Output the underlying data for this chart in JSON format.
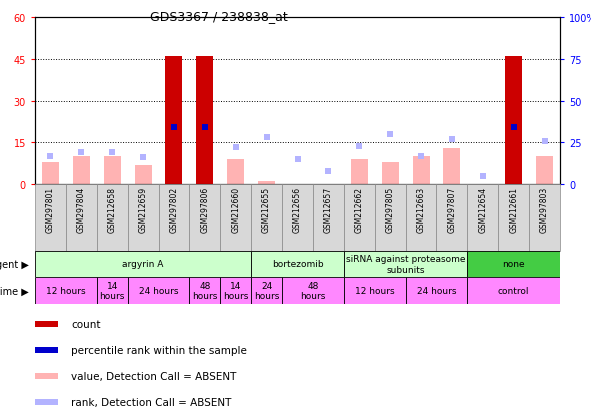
{
  "title": "GDS3367 / 238838_at",
  "samples": [
    "GSM297801",
    "GSM297804",
    "GSM212658",
    "GSM212659",
    "GSM297802",
    "GSM297806",
    "GSM212660",
    "GSM212655",
    "GSM212656",
    "GSM212657",
    "GSM212662",
    "GSM297805",
    "GSM212663",
    "GSM297807",
    "GSM212654",
    "GSM212661",
    "GSM297803"
  ],
  "count_values": [
    0,
    0,
    0,
    0,
    46,
    46,
    0,
    0,
    0,
    0,
    0,
    0,
    0,
    0,
    0,
    46,
    0
  ],
  "value_absent": [
    8,
    10,
    10,
    7,
    0,
    0,
    9,
    1,
    0,
    0,
    9,
    8,
    10,
    13,
    0,
    0,
    10
  ],
  "rank_absent": [
    17,
    19,
    19,
    16,
    0,
    0,
    22,
    28,
    15,
    8,
    23,
    30,
    17,
    27,
    5,
    0,
    26
  ],
  "percentile_present": [
    0,
    0,
    0,
    0,
    34,
    34,
    0,
    0,
    0,
    0,
    0,
    0,
    0,
    0,
    0,
    34,
    0
  ],
  "agent_groups": [
    {
      "label": "argyrin A",
      "start": 0,
      "end": 7,
      "color": "#ccffcc"
    },
    {
      "label": "bortezomib",
      "start": 7,
      "end": 10,
      "color": "#ccffcc"
    },
    {
      "label": "siRNA against proteasome\nsubunits",
      "start": 10,
      "end": 14,
      "color": "#ccffcc"
    },
    {
      "label": "none",
      "start": 14,
      "end": 17,
      "color": "#44cc44"
    }
  ],
  "time_groups": [
    {
      "label": "12 hours",
      "start": 0,
      "end": 2
    },
    {
      "label": "14\nhours",
      "start": 2,
      "end": 3
    },
    {
      "label": "24 hours",
      "start": 3,
      "end": 5
    },
    {
      "label": "48\nhours",
      "start": 5,
      "end": 6
    },
    {
      "label": "14\nhours",
      "start": 6,
      "end": 7
    },
    {
      "label": "24\nhours",
      "start": 7,
      "end": 8
    },
    {
      "label": "48\nhours",
      "start": 8,
      "end": 10
    },
    {
      "label": "12 hours",
      "start": 10,
      "end": 12
    },
    {
      "label": "24 hours",
      "start": 12,
      "end": 14
    },
    {
      "label": "control",
      "start": 14,
      "end": 17
    }
  ],
  "ylim_left": [
    0,
    60
  ],
  "ylim_right": [
    0,
    100
  ],
  "yticks_left": [
    0,
    15,
    30,
    45,
    60
  ],
  "yticks_right": [
    0,
    25,
    50,
    75,
    100
  ],
  "count_color": "#cc0000",
  "percentile_color": "#0000cc",
  "value_absent_color": "#ffb3b3",
  "rank_absent_color": "#b3b3ff",
  "bar_width": 0.55,
  "bg_color": "#ffffff",
  "agent_light_color": "#ccffcc",
  "agent_dark_color": "#44cc44",
  "time_color": "#ff88ff",
  "sample_bg_color": "#d8d8d8",
  "sample_border_color": "#888888"
}
